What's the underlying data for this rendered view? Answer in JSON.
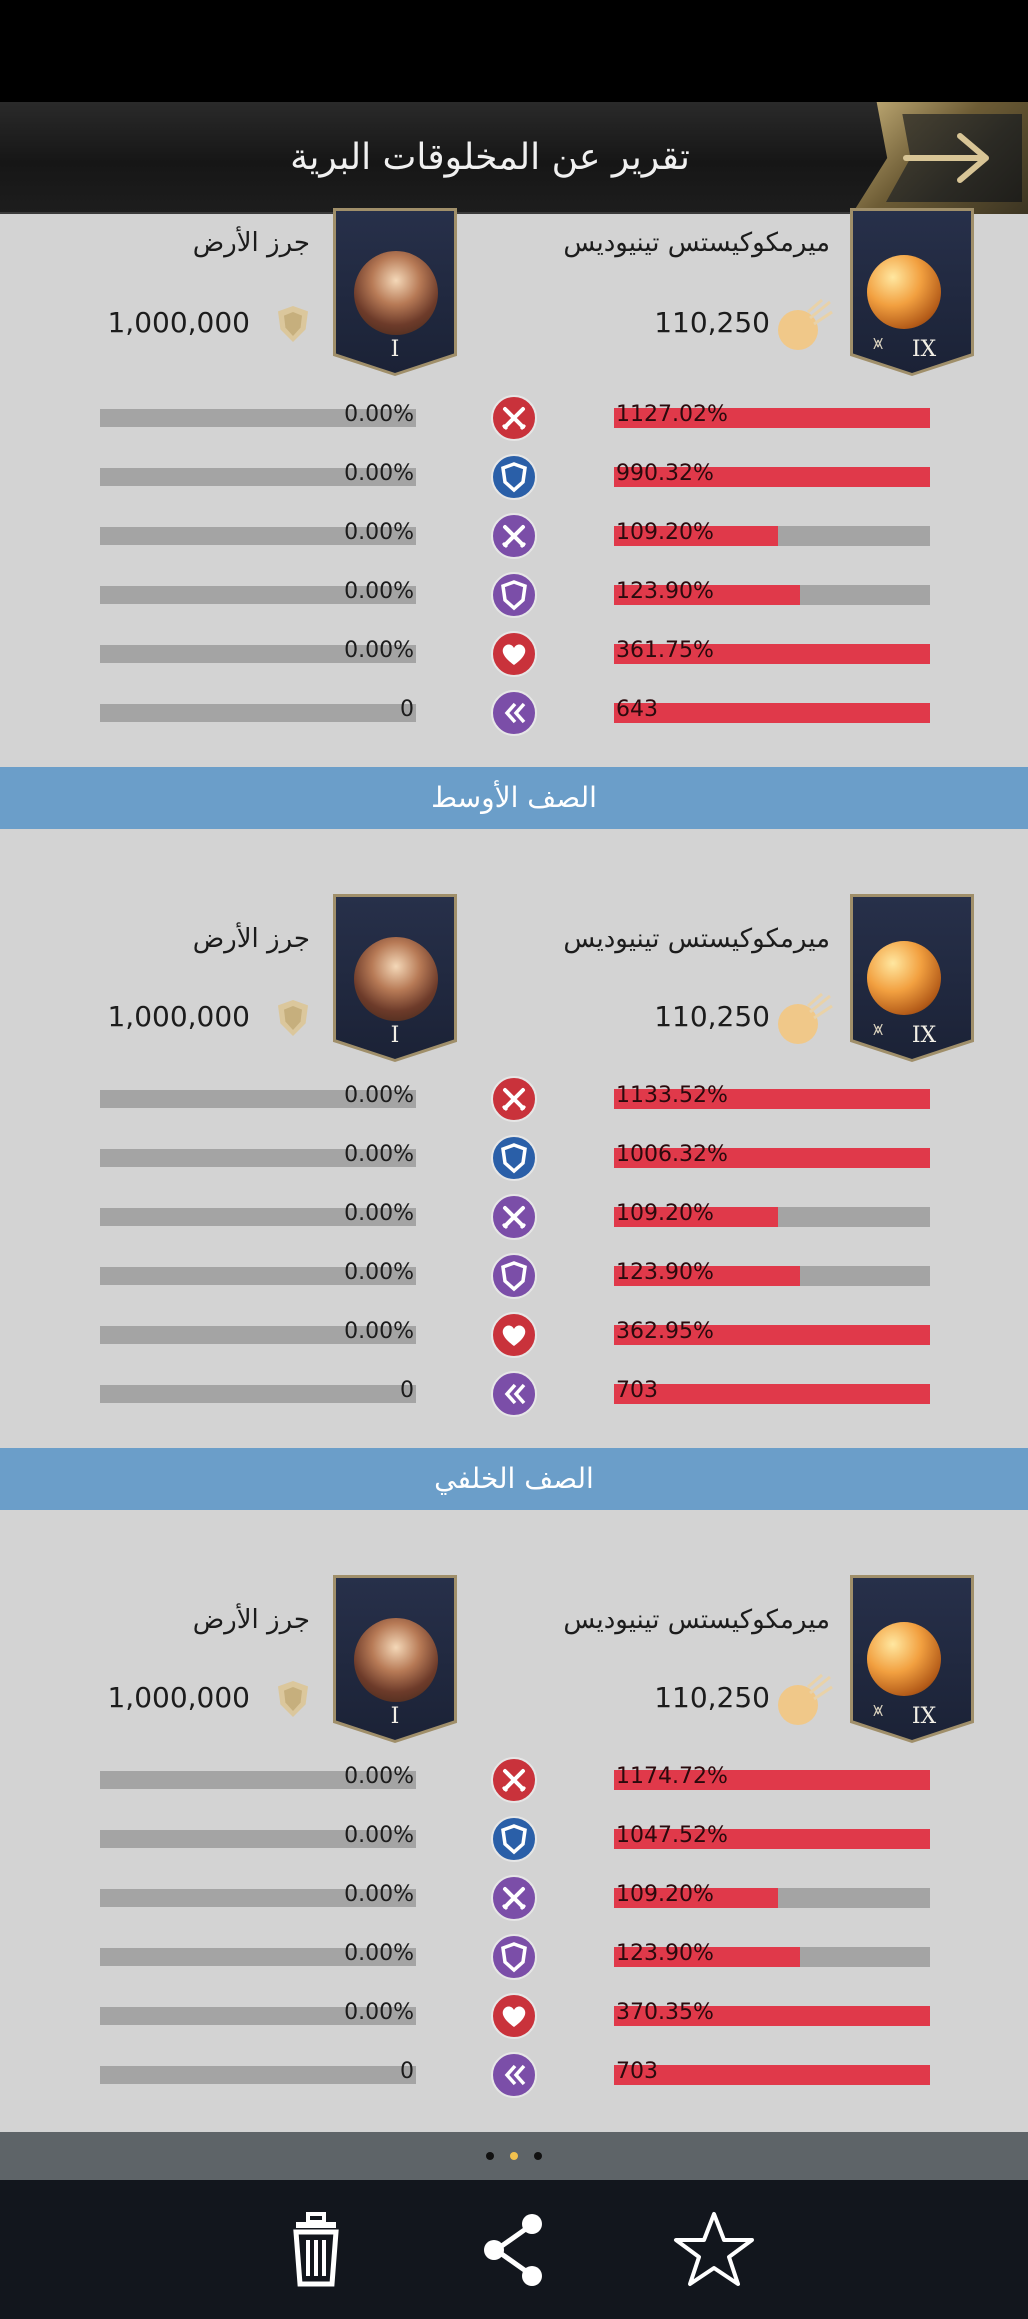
{
  "header": {
    "title": "تقرير عن المخلوقات البرية",
    "back_icon": "arrow-right-icon"
  },
  "unit_labels": {
    "left_name": "جرز الأرض",
    "left_count": "1,000,000",
    "left_tier": "I",
    "right_name": "ميرمكوكيستس تينيوديس",
    "right_count": "110,250",
    "right_tier": "IX"
  },
  "sections": [
    {
      "title": "",
      "stats": [
        {
          "icon": "crossed-swords-icon",
          "left": "0.00%",
          "right": "1127.02%",
          "fill": 1.0
        },
        {
          "icon": "shield-icon",
          "left": "0.00%",
          "right": "990.32%",
          "fill": 1.0
        },
        {
          "icon": "crossed-swords-purple-icon",
          "left": "0.00%",
          "right": "109.20%",
          "fill": 0.52
        },
        {
          "icon": "shield-purple-icon",
          "left": "0.00%",
          "right": "123.90%",
          "fill": 0.59
        },
        {
          "icon": "heart-icon",
          "left": "0.00%",
          "right": "361.75%",
          "fill": 1.0
        },
        {
          "icon": "double-chevron-icon",
          "left": "0",
          "right": "643",
          "fill": 1.0
        }
      ]
    },
    {
      "title": "الصف الأوسط",
      "stats": [
        {
          "icon": "crossed-swords-icon",
          "left": "0.00%",
          "right": "1133.52%",
          "fill": 1.0
        },
        {
          "icon": "shield-icon",
          "left": "0.00%",
          "right": "1006.32%",
          "fill": 1.0
        },
        {
          "icon": "crossed-swords-purple-icon",
          "left": "0.00%",
          "right": "109.20%",
          "fill": 0.52
        },
        {
          "icon": "shield-purple-icon",
          "left": "0.00%",
          "right": "123.90%",
          "fill": 0.59
        },
        {
          "icon": "heart-icon",
          "left": "0.00%",
          "right": "362.95%",
          "fill": 1.0
        },
        {
          "icon": "double-chevron-icon",
          "left": "0",
          "right": "703",
          "fill": 1.0
        }
      ]
    },
    {
      "title": "الصف الخلفي",
      "stats": [
        {
          "icon": "crossed-swords-icon",
          "left": "0.00%",
          "right": "1174.72%",
          "fill": 1.0
        },
        {
          "icon": "shield-icon",
          "left": "0.00%",
          "right": "1047.52%",
          "fill": 1.0
        },
        {
          "icon": "crossed-swords-purple-icon",
          "left": "0.00%",
          "right": "109.20%",
          "fill": 0.52
        },
        {
          "icon": "shield-purple-icon",
          "left": "0.00%",
          "right": "123.90%",
          "fill": 0.59
        },
        {
          "icon": "heart-icon",
          "left": "0.00%",
          "right": "370.35%",
          "fill": 1.0
        },
        {
          "icon": "double-chevron-icon",
          "left": "0",
          "right": "703",
          "fill": 1.0
        }
      ]
    }
  ],
  "pager": {
    "pages": 3,
    "active_index": 1
  },
  "footer": {
    "buttons": [
      "trash-icon",
      "share-icon",
      "star-icon"
    ]
  },
  "colors": {
    "bar_red": "#e0394a",
    "bar_gray": "#a4a4a4",
    "section_header": "#6b9ec9",
    "content_bg": "#d3d3d3"
  }
}
